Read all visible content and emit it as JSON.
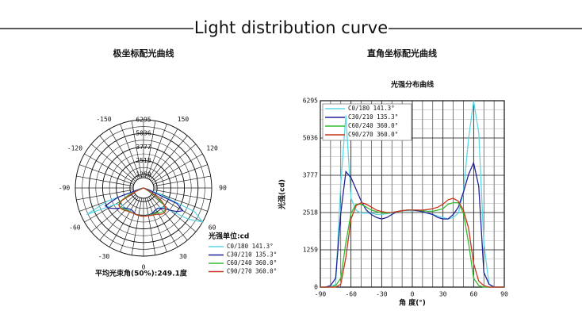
{
  "title": "Light distribution curve",
  "chart_data": [
    {
      "type": "polar",
      "title": "极坐标配光曲线",
      "theta": [
        -90,
        -85,
        -80,
        -75,
        -70,
        -65,
        -60,
        -55,
        -50,
        -45,
        -40,
        -35,
        -30,
        -25,
        -20,
        -15,
        -10,
        -5,
        0,
        5,
        10,
        15,
        20,
        25,
        30,
        35,
        40,
        45,
        50,
        55,
        60,
        65,
        70,
        75,
        80,
        85,
        90
      ],
      "theta_ticks": [
        -150,
        150,
        -120,
        120,
        -90,
        90,
        -60,
        60,
        -30,
        30,
        0
      ],
      "rlim": [
        0,
        6295
      ],
      "rticks": [
        1259,
        2518,
        3777,
        5036,
        6295
      ],
      "legend_title": "光强单位:cd",
      "series": [
        {
          "name": "C0/180  141.3°",
          "color": "#5ad8e6",
          "values": [
            0,
            0,
            0,
            100,
            3500,
            5800,
            3000,
            2600,
            2500,
            2500,
            2500,
            2450,
            2450,
            2480,
            2500,
            2550,
            2580,
            2580,
            2580,
            2580,
            2550,
            2500,
            2450,
            2400,
            2350,
            2300,
            2350,
            2500,
            3200,
            5000,
            6295,
            5200,
            1500,
            100,
            0,
            0,
            0
          ]
        },
        {
          "name": "C30/210  135.3°",
          "color": "#22229a",
          "values": [
            0,
            0,
            50,
            300,
            2500,
            3900,
            3700,
            3300,
            2900,
            2600,
            2450,
            2350,
            2300,
            2350,
            2450,
            2550,
            2580,
            2600,
            2600,
            2580,
            2550,
            2500,
            2450,
            2350,
            2300,
            2300,
            2450,
            2700,
            3200,
            3800,
            4200,
            3400,
            500,
            100,
            0,
            0,
            0
          ]
        },
        {
          "name": "C60/240  360.0°",
          "color": "#33bb33",
          "values": [
            0,
            0,
            0,
            50,
            300,
            1500,
            2500,
            2800,
            2800,
            2700,
            2600,
            2550,
            2500,
            2500,
            2520,
            2550,
            2580,
            2600,
            2600,
            2600,
            2580,
            2560,
            2560,
            2600,
            2650,
            2800,
            2850,
            2850,
            2500,
            1500,
            300,
            50,
            0,
            0,
            0,
            0,
            0
          ]
        },
        {
          "name": "C90/270  360.0°",
          "color": "#c8361e",
          "values": [
            0,
            0,
            0,
            0,
            100,
            1000,
            2300,
            2750,
            2850,
            2800,
            2700,
            2600,
            2550,
            2520,
            2520,
            2550,
            2580,
            2600,
            2600,
            2600,
            2600,
            2620,
            2650,
            2700,
            2800,
            2950,
            3000,
            2900,
            2600,
            2000,
            800,
            200,
            50,
            0,
            0,
            0,
            0
          ]
        }
      ],
      "footer": "平均光束角(50%):249.1度"
    },
    {
      "type": "line",
      "title": "直角坐标配光曲线",
      "subtitle": "光强分布曲线",
      "xlabel": "角 度(°)",
      "ylabel": "光强(cd)",
      "x": [
        -90,
        -85,
        -80,
        -75,
        -70,
        -65,
        -60,
        -55,
        -50,
        -45,
        -40,
        -35,
        -30,
        -25,
        -20,
        -15,
        -10,
        -5,
        0,
        5,
        10,
        15,
        20,
        25,
        30,
        35,
        40,
        45,
        50,
        55,
        60,
        65,
        70,
        75,
        80,
        85,
        90
      ],
      "xlim": [
        -90,
        90
      ],
      "xticks": [
        -90,
        -60,
        -30,
        0,
        30,
        60,
        90
      ],
      "ylim": [
        0,
        6295
      ],
      "yticks": [
        0,
        1259,
        2518,
        3777,
        5036,
        6295
      ],
      "grid": true,
      "legend": "upper left",
      "series": [
        {
          "name": "C0/180 141.3°",
          "color": "#5ad8e6",
          "values": [
            0,
            0,
            0,
            100,
            3500,
            5800,
            3000,
            2600,
            2500,
            2500,
            2500,
            2450,
            2450,
            2480,
            2500,
            2550,
            2580,
            2580,
            2580,
            2580,
            2550,
            2500,
            2450,
            2400,
            2350,
            2300,
            2350,
            2500,
            3200,
            5000,
            6295,
            5200,
            1500,
            100,
            0,
            0,
            0
          ]
        },
        {
          "name": "C30/210 135.3°",
          "color": "#22229a",
          "values": [
            0,
            0,
            50,
            300,
            2500,
            3900,
            3700,
            3300,
            2900,
            2600,
            2450,
            2350,
            2300,
            2350,
            2450,
            2550,
            2580,
            2600,
            2600,
            2580,
            2550,
            2500,
            2450,
            2350,
            2300,
            2300,
            2450,
            2700,
            3200,
            3800,
            4200,
            3400,
            500,
            100,
            0,
            0,
            0
          ]
        },
        {
          "name": "C60/240 360.0°",
          "color": "#33bb33",
          "values": [
            0,
            0,
            0,
            50,
            300,
            1500,
            2500,
            2800,
            2800,
            2700,
            2600,
            2550,
            2500,
            2500,
            2520,
            2550,
            2580,
            2600,
            2600,
            2600,
            2580,
            2560,
            2560,
            2600,
            2650,
            2800,
            2850,
            2850,
            2500,
            1500,
            300,
            50,
            0,
            0,
            0,
            0,
            0
          ]
        },
        {
          "name": "C90/270 360.0°",
          "color": "#c8361e",
          "values": [
            0,
            0,
            0,
            0,
            100,
            1000,
            2300,
            2750,
            2850,
            2800,
            2700,
            2600,
            2550,
            2520,
            2520,
            2550,
            2580,
            2600,
            2600,
            2600,
            2600,
            2620,
            2650,
            2700,
            2800,
            2950,
            3000,
            2900,
            2600,
            2000,
            800,
            200,
            50,
            0,
            0,
            0,
            0
          ]
        }
      ]
    }
  ]
}
